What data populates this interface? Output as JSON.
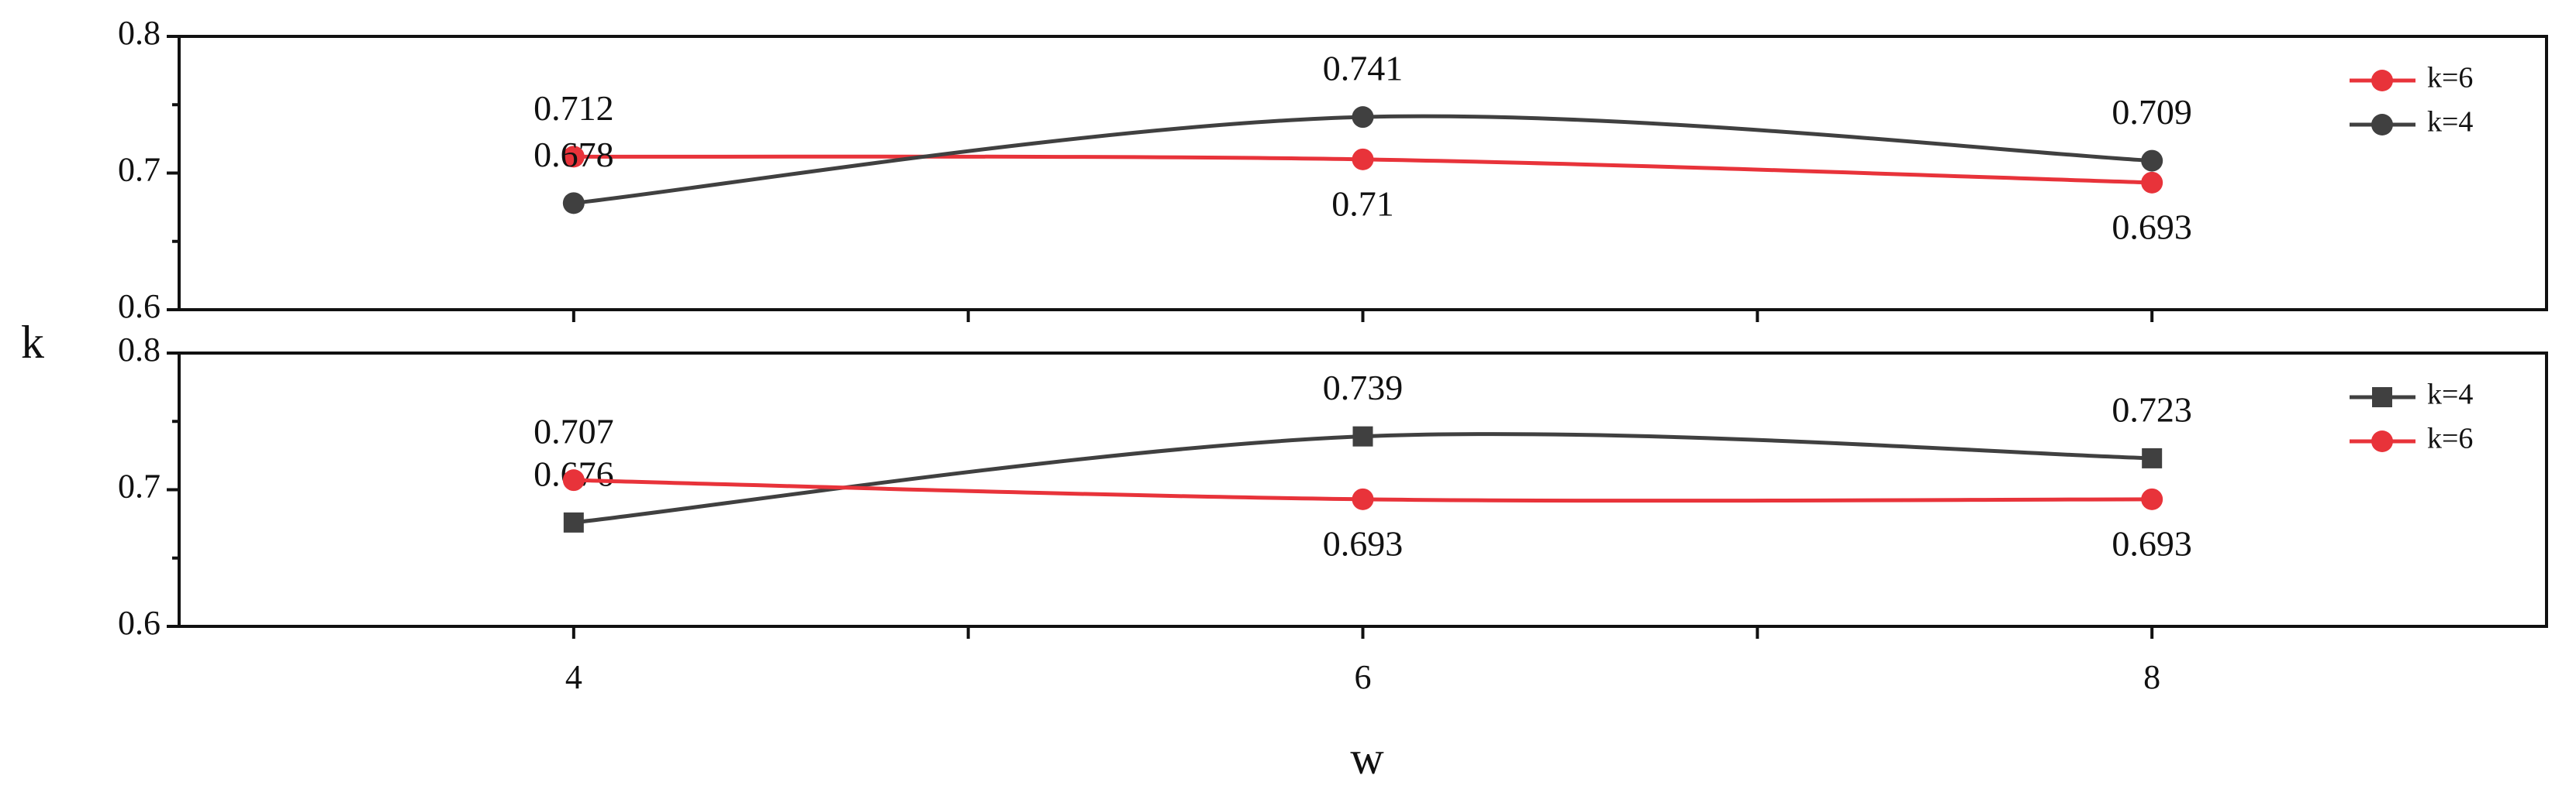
{
  "xlabel": "w",
  "ylabel": "k",
  "chart_data": [
    {
      "type": "line",
      "x": [
        4,
        6,
        8
      ],
      "xlim": [
        3,
        9
      ],
      "xticks": [
        4,
        6,
        8
      ],
      "xminorticks": [
        5,
        7
      ],
      "ylim": [
        0.6,
        0.8
      ],
      "yticks": [
        0.6,
        0.7,
        0.8
      ],
      "yminorticks": [
        0.65,
        0.75
      ],
      "smooth": true,
      "legend": "upper right",
      "series": [
        {
          "name": "k=6",
          "color": "#e8333a",
          "marker": "circle",
          "values": [
            0.712,
            0.71,
            0.693
          ]
        },
        {
          "name": "k=4",
          "color": "#404040",
          "marker": "circle",
          "values": [
            0.678,
            0.741,
            0.709
          ]
        }
      ]
    },
    {
      "type": "line",
      "x": [
        4,
        6,
        8
      ],
      "xlim": [
        3,
        9
      ],
      "xticks": [
        4,
        6,
        8
      ],
      "xminorticks": [
        5,
        7
      ],
      "ylim": [
        0.6,
        0.8
      ],
      "yticks": [
        0.6,
        0.7,
        0.8
      ],
      "yminorticks": [
        0.65,
        0.75
      ],
      "smooth": true,
      "legend": "upper right",
      "series": [
        {
          "name": "k=4",
          "color": "#404040",
          "marker": "square",
          "values": [
            0.676,
            0.739,
            0.723
          ]
        },
        {
          "name": "k=6",
          "color": "#e8333a",
          "marker": "circle",
          "values": [
            0.707,
            0.693,
            0.693
          ]
        }
      ]
    }
  ]
}
